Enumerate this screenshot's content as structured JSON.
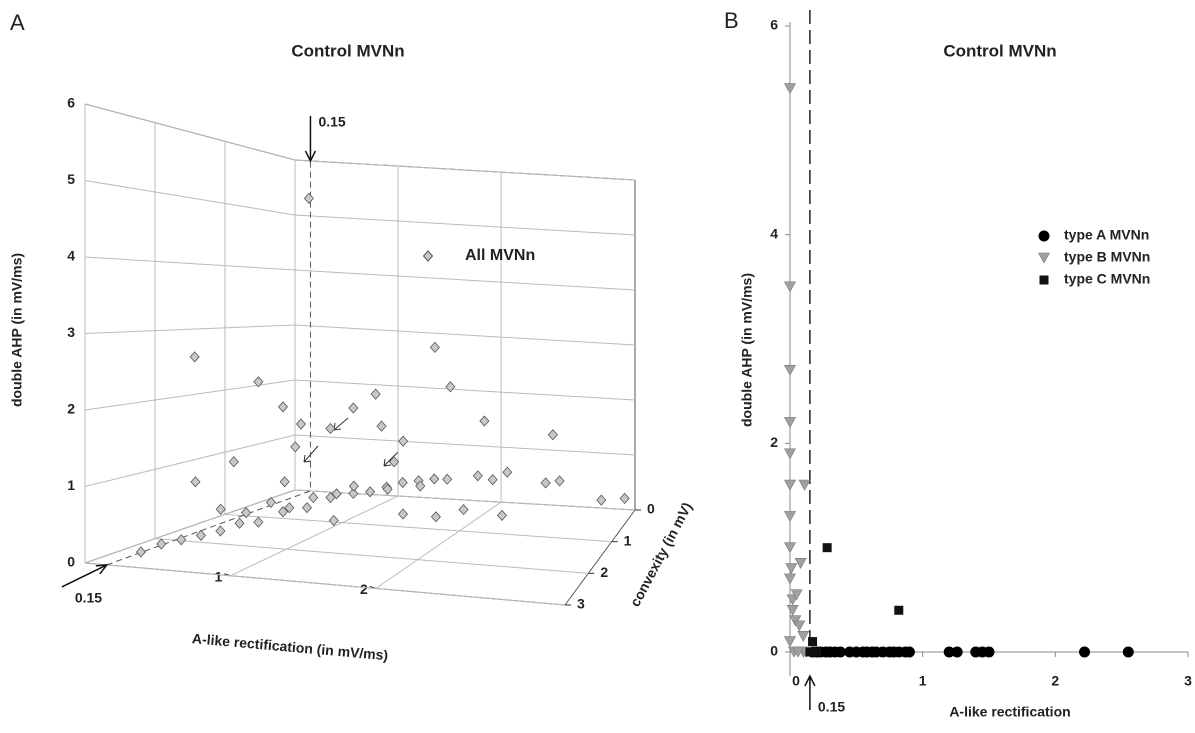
{
  "chart_data": [
    {
      "type": "scatter3d",
      "panel": "A",
      "title": "Control MVNn",
      "xlabel": "A-like rectification  (in mV/ms)",
      "ylabel": "convexity (in mV)",
      "zlabel": "double AHP (in mV/ms)",
      "xlim": [
        0,
        3.3
      ],
      "xticks": [
        1,
        2
      ],
      "ylim": [
        0,
        3
      ],
      "yticks": [
        0,
        1,
        2,
        3
      ],
      "zlim": [
        0,
        6
      ],
      "zticks": [
        0,
        1,
        2,
        3,
        4,
        5,
        6
      ],
      "threshold_x": 0.15,
      "grid": true,
      "legend": "right",
      "series": [
        {
          "name": "All MVNn",
          "color": "#c8c8c8",
          "marker": "diamond",
          "x": [
            0.2,
            0.25,
            0.3,
            0.35,
            0.4,
            0.45,
            0.5,
            0.6,
            0.7,
            0.8,
            0.9,
            1.0,
            1.1,
            1.2,
            1.3,
            1.4,
            0.5,
            0.6,
            0.7,
            0.8,
            0.9,
            1.0,
            1.1,
            1.3,
            1.5,
            1.7,
            1.9,
            2.0,
            2.1,
            2.5,
            2.6,
            3.0,
            3.2,
            1.6,
            1.8,
            2.0,
            2.3,
            1.2,
            0.4,
            0.6,
            0.7,
            0.75,
            0.8,
            0.6,
            0.5,
            0.9,
            1.0,
            1.1,
            1.2,
            1.3,
            1.5,
            0.2,
            1.6,
            2.0,
            2.6,
            0.9,
            1.4
          ],
          "y": [
            2.6,
            2.4,
            2.2,
            2.0,
            1.8,
            1.6,
            1.4,
            1.2,
            1.0,
            0.8,
            0.6,
            0.5,
            0.4,
            0.3,
            0.2,
            0.1,
            2.0,
            1.8,
            1.6,
            1.5,
            1.3,
            1.1,
            1.0,
            0.8,
            0.6,
            0.5,
            0.3,
            0.2,
            0.1,
            0.2,
            0.1,
            0.1,
            0.0,
            1.2,
            1.0,
            0.9,
            0.8,
            1.6,
            2.2,
            1.6,
            1.4,
            1.2,
            1.4,
            2.0,
            2.4,
            1.0,
            0.8,
            0.6,
            0.7,
            0.5,
            0.3,
            0.1,
            0.2,
            0.4,
            0.3,
            1.8,
            0.9
          ],
          "z": [
            0.05,
            0.1,
            0.1,
            0.1,
            0.1,
            0.15,
            0.1,
            0.2,
            0.2,
            0.3,
            0.3,
            0.3,
            0.35,
            0.4,
            0.4,
            0.4,
            0.5,
            0.4,
            0.5,
            0.4,
            0.5,
            0.5,
            0.6,
            0.5,
            0.5,
            0.6,
            0.6,
            0.5,
            0.6,
            0.5,
            0.5,
            0.2,
            0.2,
            0.3,
            0.2,
            0.3,
            0.2,
            0.3,
            2.7,
            2.3,
            1.9,
            1.6,
            1.3,
            1.2,
            1.0,
            1.5,
            1.8,
            2.0,
            1.5,
            1.2,
            2.8,
            5.3,
            2.1,
            1.6,
            1.4,
            0.9,
            1.0
          ]
        }
      ]
    },
    {
      "type": "scatter",
      "panel": "B",
      "title": "Control MVNn",
      "xlabel": "A-like rectification",
      "ylabel": "double AHP (in mV/ms)",
      "xlim": [
        0,
        3
      ],
      "xticks": [
        0,
        1,
        2,
        3
      ],
      "ylim": [
        0,
        6
      ],
      "yticks": [
        0,
        2,
        4,
        6
      ],
      "threshold_x": 0.15,
      "legend": "right",
      "series": [
        {
          "name": "type A MVNn",
          "color": "#000000",
          "marker": "circle",
          "x": [
            0.17,
            0.2,
            0.23,
            0.27,
            0.3,
            0.34,
            0.38,
            0.45,
            0.5,
            0.55,
            0.58,
            0.62,
            0.65,
            0.7,
            0.75,
            0.78,
            0.82,
            0.87,
            0.9,
            1.2,
            1.26,
            1.4,
            1.45,
            1.5,
            2.22,
            2.55
          ],
          "y": [
            0,
            0,
            0,
            0,
            0,
            0,
            0,
            0,
            0,
            0,
            0,
            0,
            0,
            0,
            0,
            0,
            0,
            0,
            0,
            0,
            0,
            0,
            0,
            0,
            0,
            0
          ]
        },
        {
          "name": "type B MVNn",
          "color": "#a0a0a0",
          "marker": "triangle",
          "x": [
            0,
            0,
            0,
            0,
            0,
            0,
            0,
            0,
            0.01,
            0.08,
            0.11,
            0.02,
            0.05,
            0.04,
            0.07,
            0.1,
            0,
            0.03,
            0.1,
            0.12,
            0.06,
            0,
            0.02
          ],
          "y": [
            5.4,
            3.5,
            2.7,
            2.2,
            1.9,
            1.6,
            1.3,
            1.0,
            0.8,
            0.85,
            1.6,
            0.5,
            0.55,
            0.3,
            0.25,
            0.15,
            0.1,
            0,
            0,
            0,
            0,
            0.7,
            0.4
          ]
        },
        {
          "name": "type C MVNn",
          "color": "#111111",
          "marker": "square",
          "x": [
            0.28,
            0.82,
            0.17,
            0.15,
            0.2
          ],
          "y": [
            1.0,
            0.4,
            0.1,
            0,
            0
          ]
        }
      ]
    }
  ]
}
